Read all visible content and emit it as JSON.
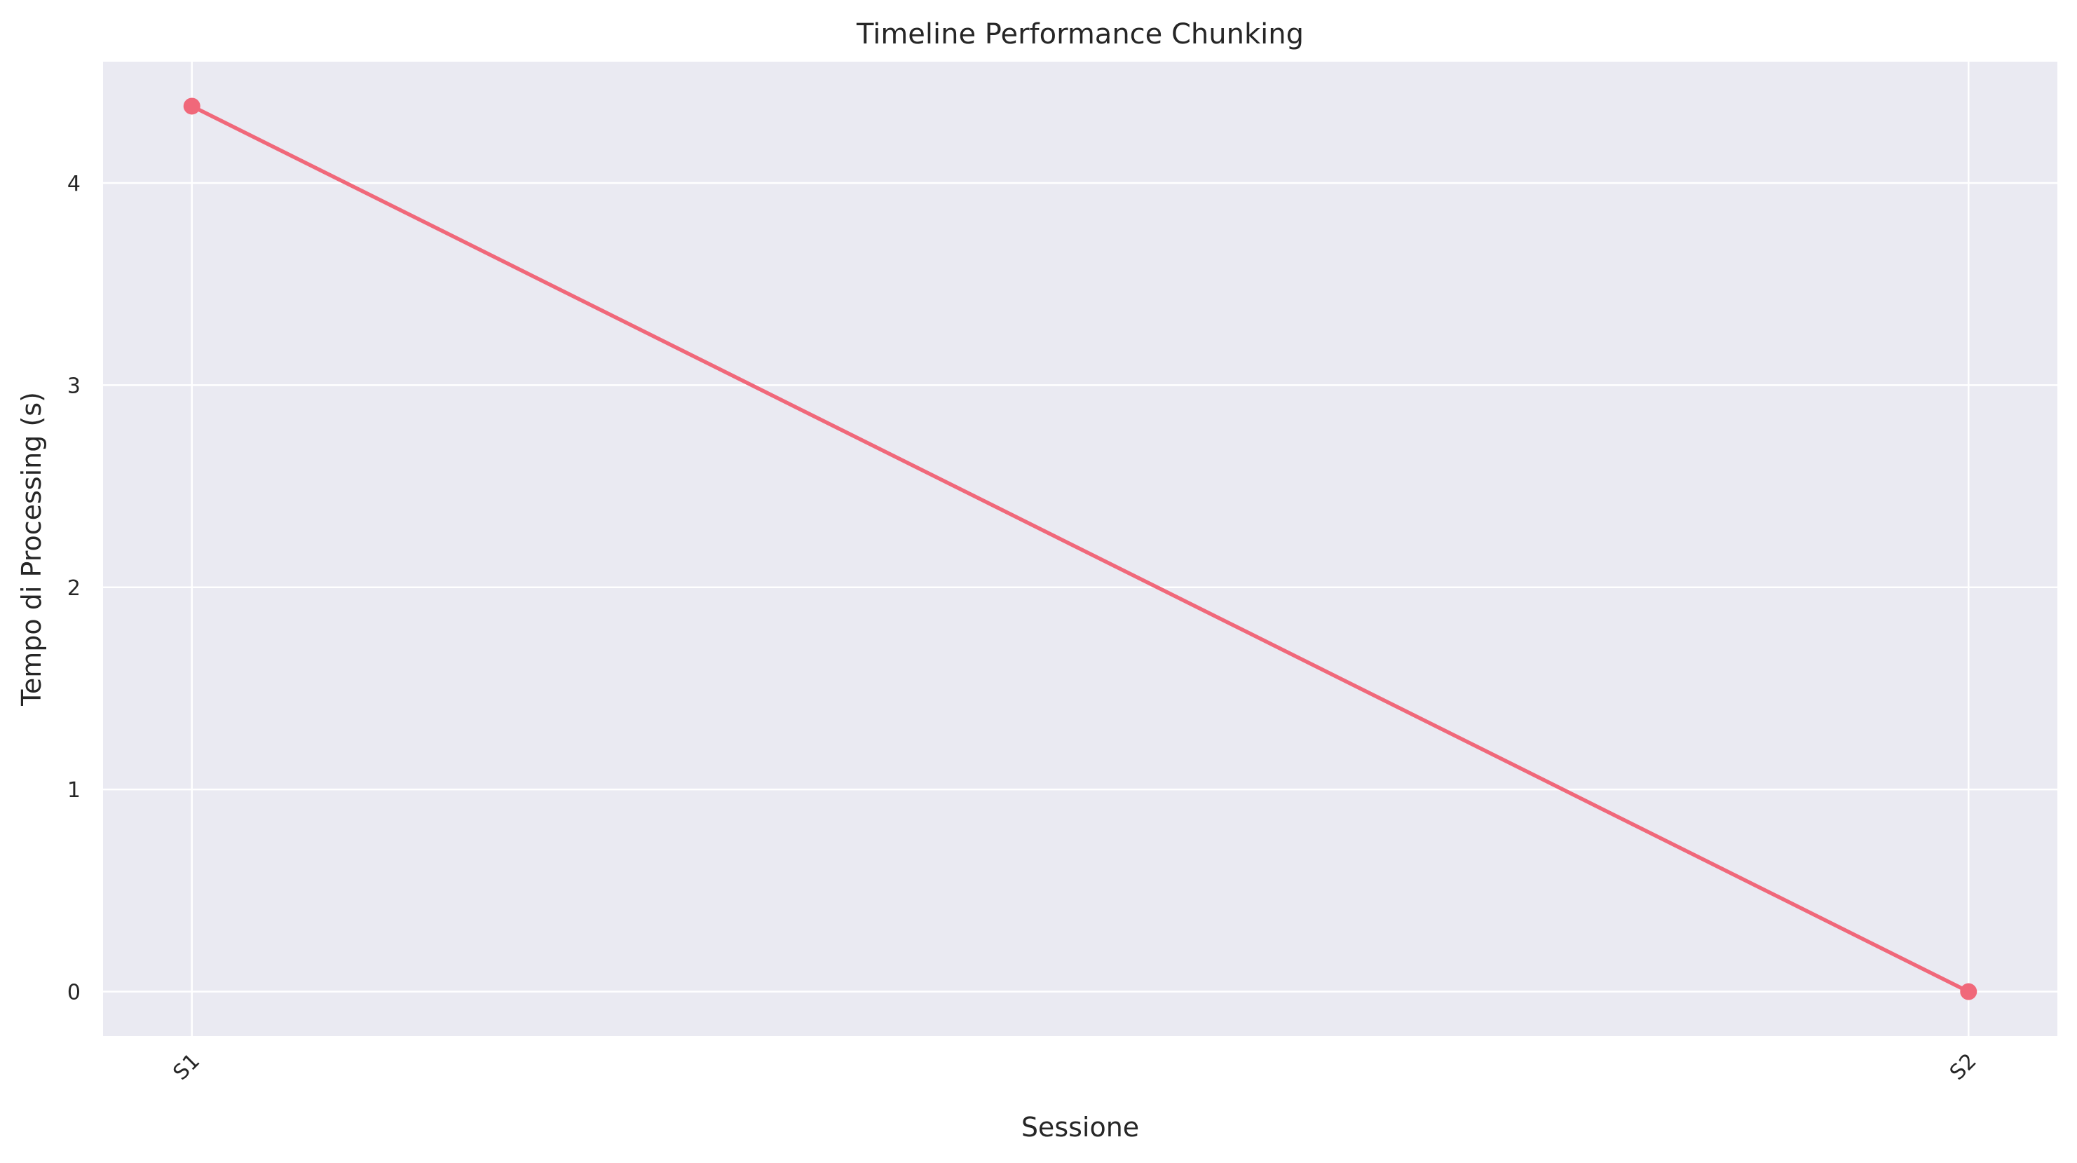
{
  "chart_data": {
    "type": "line",
    "title": "Timeline Performance Chunking",
    "xlabel": "Sessione",
    "ylabel": "Tempo di Processing (s)",
    "categories": [
      "S1",
      "S2"
    ],
    "series": [
      {
        "values": [
          4.38,
          0.0
        ],
        "color": "#f0687a",
        "marker": "circle"
      }
    ],
    "ylim": [
      -0.22,
      4.6
    ],
    "yticks": [
      0,
      1,
      2,
      3,
      4
    ],
    "grid": true,
    "background": "#eaeaf2",
    "grid_color": "#ffffff",
    "x_tick_rotation_deg": 45
  }
}
